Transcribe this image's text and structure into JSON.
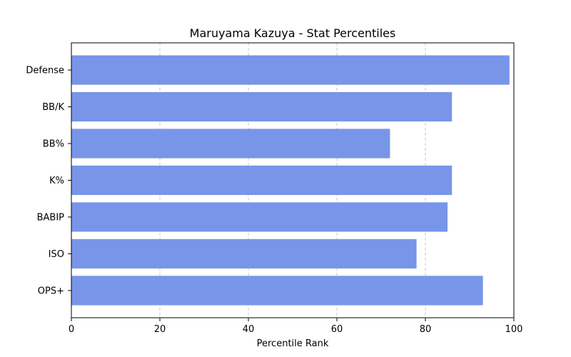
{
  "chart_data": {
    "type": "bar",
    "orientation": "horizontal",
    "title": "Maruyama Kazuya - Stat Percentiles",
    "xlabel": "Percentile Rank",
    "ylabel": "",
    "categories": [
      "OPS+",
      "ISO",
      "BABIP",
      "K%",
      "BB%",
      "BB/K",
      "Defense"
    ],
    "values": [
      93,
      78,
      85,
      86,
      72,
      86,
      99
    ],
    "xlim": [
      0,
      100
    ],
    "xticks": [
      "0",
      "20",
      "40",
      "60",
      "80",
      "100"
    ],
    "grid": "vertical dashed",
    "bar_color": "#7895E9"
  }
}
